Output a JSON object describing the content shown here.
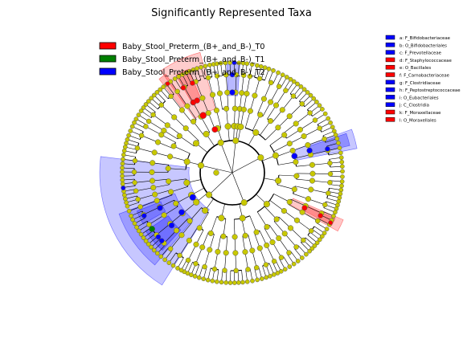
{
  "chart_data": {
    "type": "cladogram",
    "title": "Significantly Represented Taxa",
    "groups": [
      {
        "name": "Baby_Stool_Preterm_(B+_and_B-)_T0",
        "color": "#ff0000"
      },
      {
        "name": "Baby_Stool_Preterm_(B+_and_B-)_T1",
        "color": "#008000"
      },
      {
        "name": "Baby_Stool_Preterm_(B+_and_B-)_T2",
        "color": "#0000ff"
      }
    ],
    "taxa": [
      {
        "code": "a",
        "label": "a: F_Bifidobacteriaceae",
        "group": 2
      },
      {
        "code": "b",
        "label": "b: O_Bifidobacteriales",
        "group": 2
      },
      {
        "code": "c",
        "label": "c: F_Prevotellaceae",
        "group": 2
      },
      {
        "code": "d",
        "label": "d: F_Staphylococcaceae",
        "group": 0
      },
      {
        "code": "e",
        "label": "e: O_Bacillales",
        "group": 0
      },
      {
        "code": "f",
        "label": "f: F_Carnobacteriaceae",
        "group": 0
      },
      {
        "code": "g",
        "label": "g: F_Clostridiaceae",
        "group": 2
      },
      {
        "code": "h",
        "label": "h: F_Peptostreptococcaceae",
        "group": 2
      },
      {
        "code": "i",
        "label": "i: O_Eubacteriales",
        "group": 2
      },
      {
        "code": "j",
        "label": "j: C_Clostridia",
        "group": 2
      },
      {
        "code": "k",
        "label": "k: F_Moraxellaceae",
        "group": 0
      },
      {
        "code": "l",
        "label": "l: O_Moraxellales",
        "group": 0
      }
    ],
    "node_color_nonsignificant": "#c8c800",
    "background": "#ffffff"
  }
}
